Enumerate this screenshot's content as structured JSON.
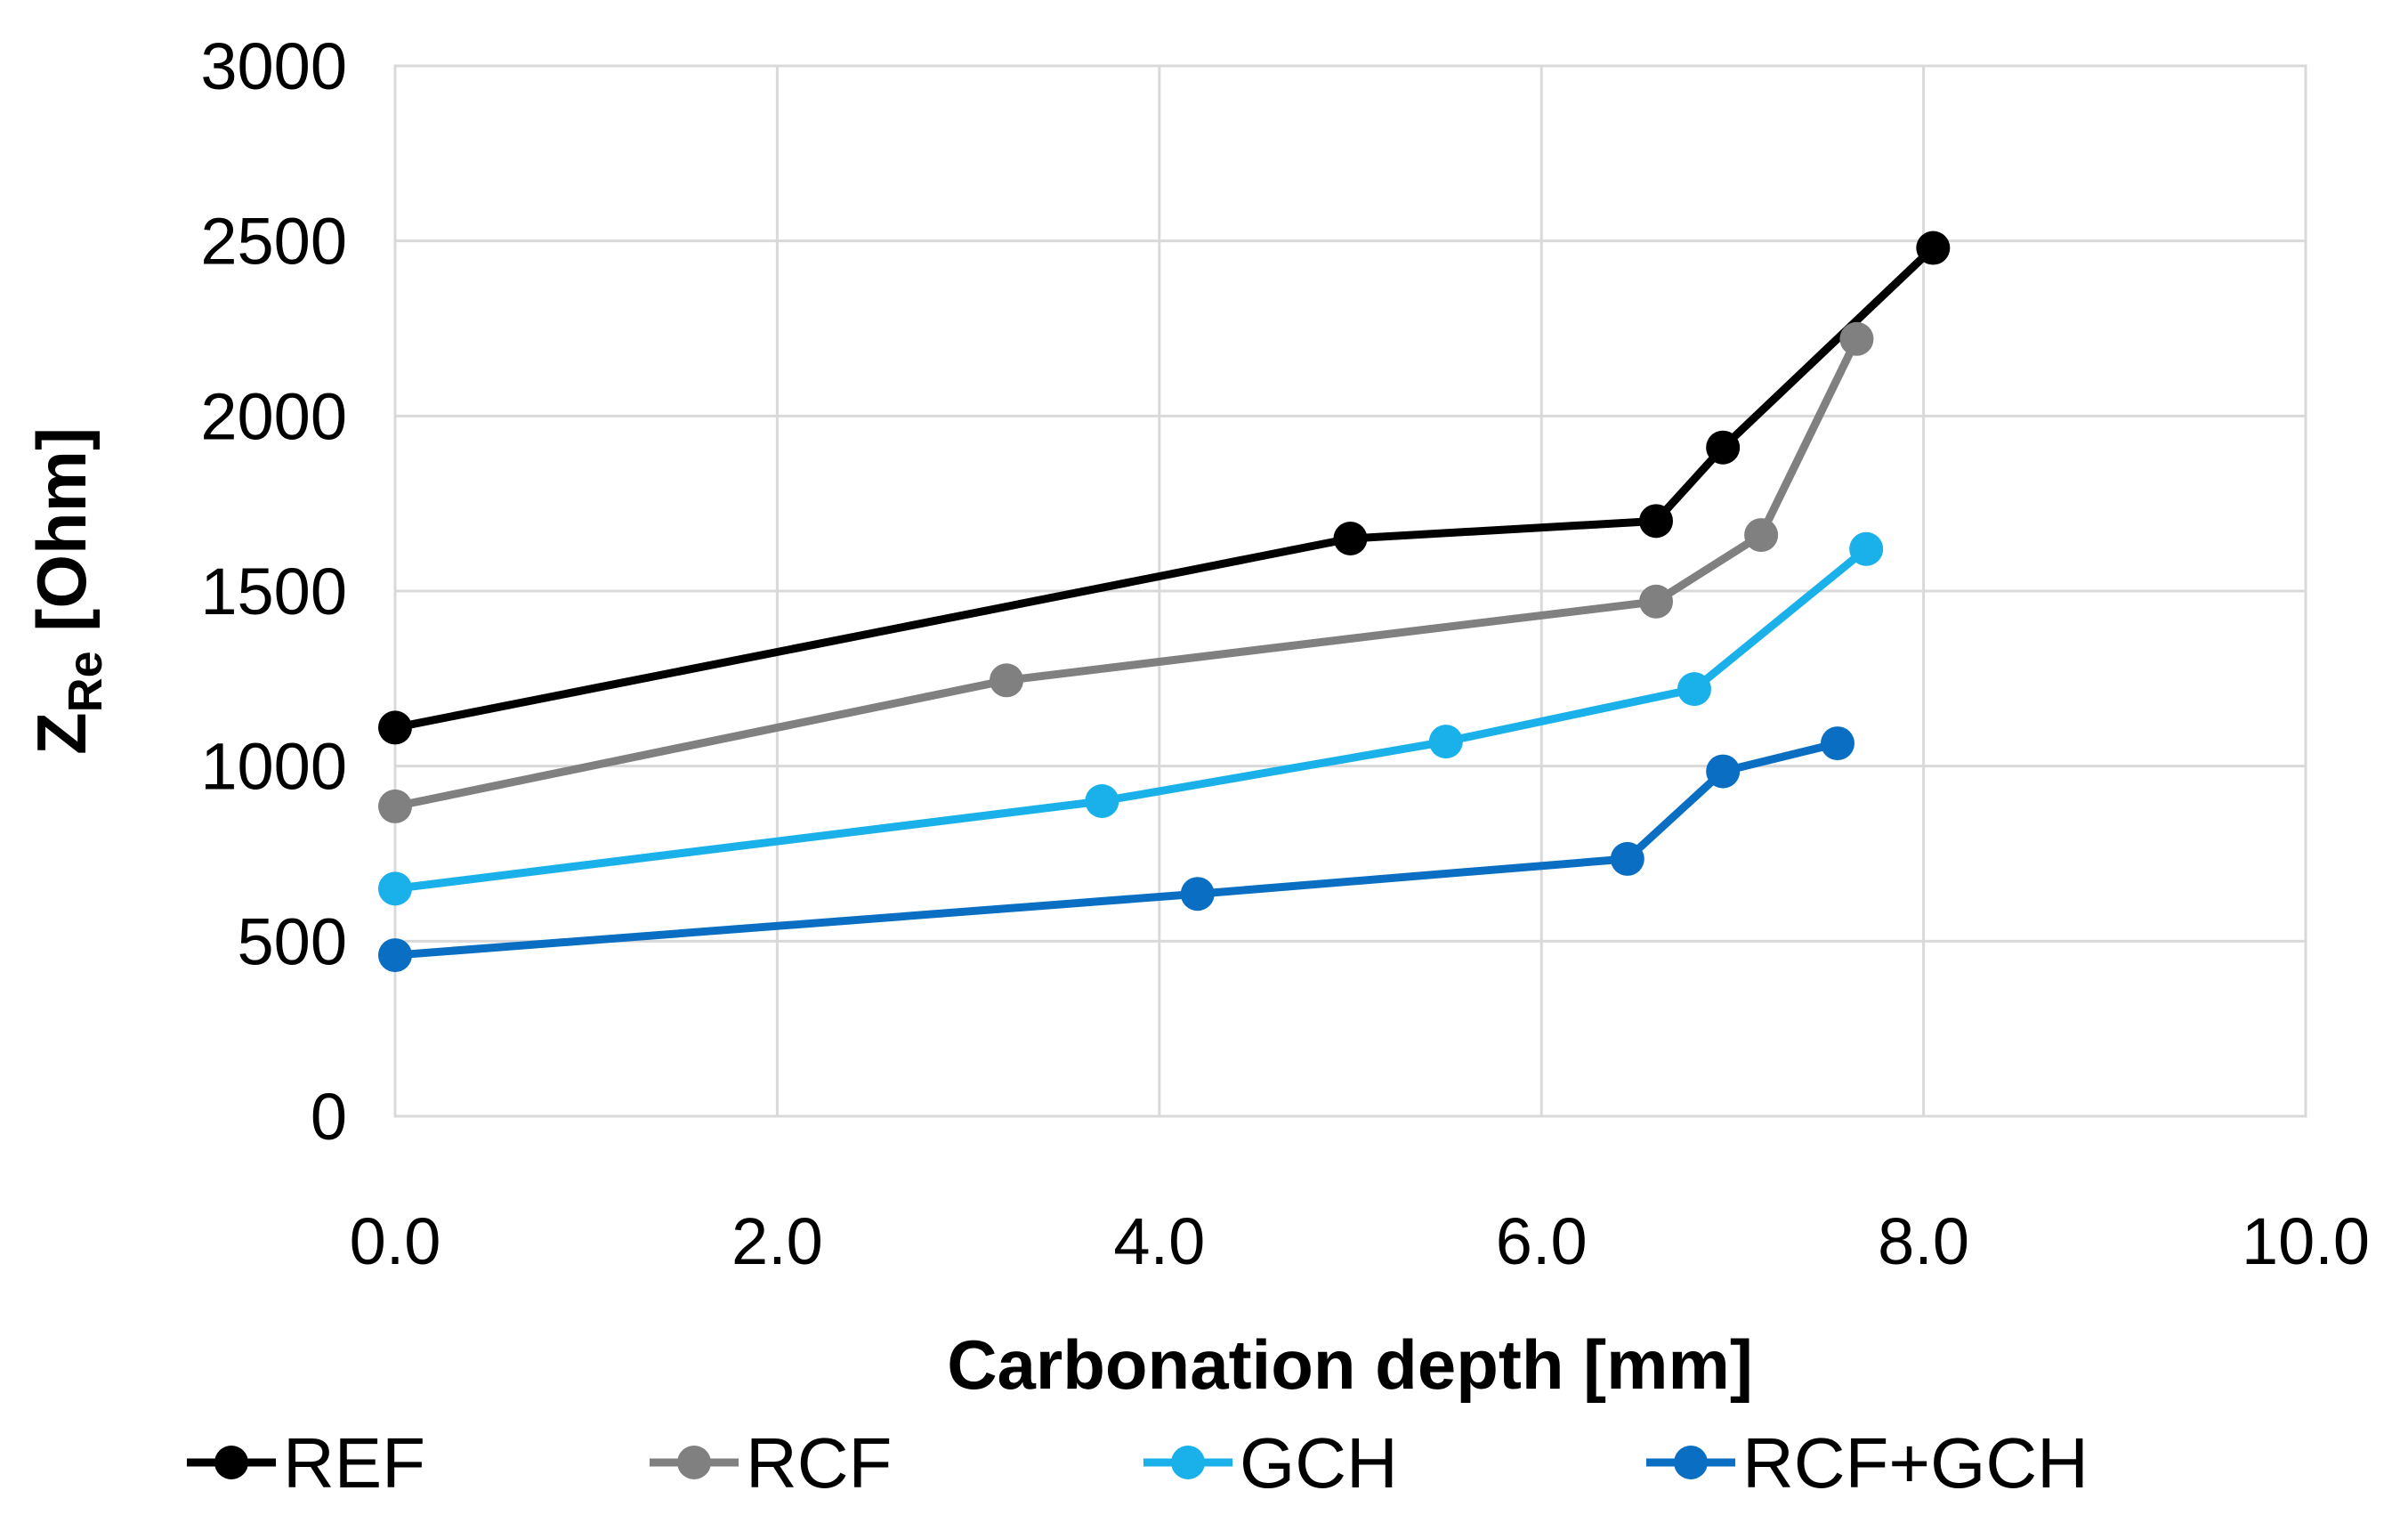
{
  "chart_data": {
    "type": "line",
    "x_axis": {
      "label": "Carbonation depth [mm]",
      "range": [
        0,
        10
      ],
      "ticks": [
        "0.0",
        "2.0",
        "4.0",
        "6.0",
        "8.0",
        "10.0"
      ]
    },
    "y_axis": {
      "label_main": "Z",
      "label_sub": "Re",
      "label_unit": "[Ohm]",
      "range": [
        0,
        3000
      ],
      "ticks": [
        "0",
        "500",
        "1000",
        "1500",
        "2000",
        "2500",
        "3000"
      ]
    },
    "grid": true,
    "legend_position": "bottom",
    "series": [
      {
        "name": "REF",
        "color": "#000000",
        "points": [
          [
            0.0,
            1110
          ],
          [
            5.0,
            1650
          ],
          [
            6.6,
            1700
          ],
          [
            6.95,
            1910
          ],
          [
            8.05,
            2480
          ]
        ]
      },
      {
        "name": "RCF",
        "color": "#808080",
        "points": [
          [
            0.0,
            885
          ],
          [
            3.2,
            1245
          ],
          [
            6.6,
            1470
          ],
          [
            7.15,
            1660
          ],
          [
            7.65,
            2220
          ]
        ]
      },
      {
        "name": "GCH",
        "color": "#1ab1eb",
        "points": [
          [
            0.0,
            650
          ],
          [
            3.7,
            900
          ],
          [
            5.5,
            1070
          ],
          [
            6.8,
            1220
          ],
          [
            7.7,
            1620
          ]
        ]
      },
      {
        "name": "RCF+GCH",
        "color": "#0a6fc2",
        "points": [
          [
            0.0,
            460
          ],
          [
            4.2,
            635
          ],
          [
            6.45,
            735
          ],
          [
            6.95,
            985
          ],
          [
            7.55,
            1065
          ]
        ]
      }
    ]
  }
}
